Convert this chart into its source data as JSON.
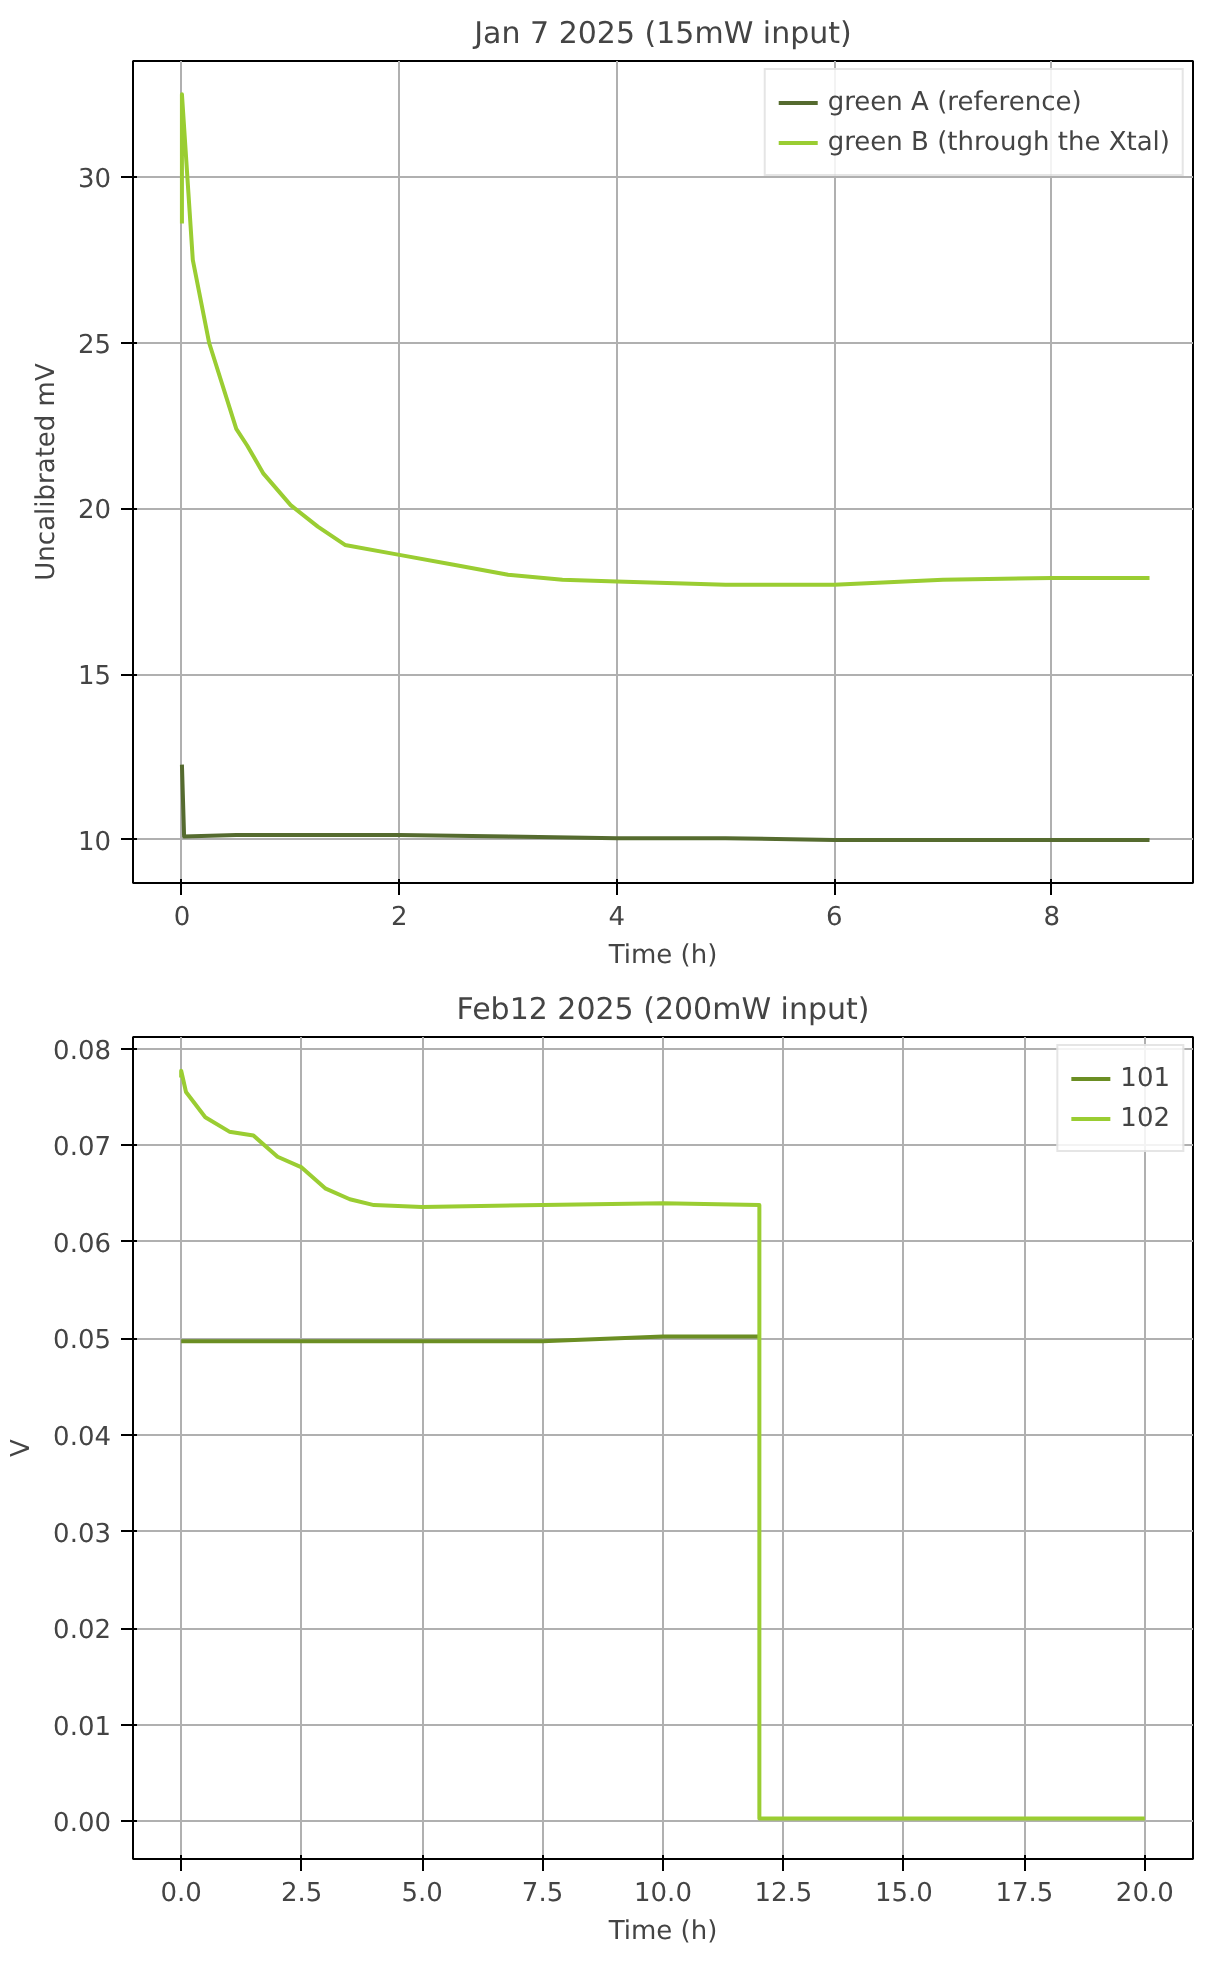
{
  "chart_data": [
    {
      "type": "line",
      "title": "Jan 7 2025 (15mW input)",
      "xlabel": "Time (h)",
      "ylabel": "Uncalibrated mV",
      "xlim": [
        -0.45,
        9.3
      ],
      "ylim": [
        8.7,
        33.5
      ],
      "xticks": [
        0,
        2,
        4,
        6,
        8
      ],
      "yticks": [
        10,
        15,
        20,
        25,
        30
      ],
      "grid": true,
      "legend": "top right",
      "series": [
        {
          "name": "green A (reference)",
          "color": "#556b2f",
          "x": [
            0,
            0.02,
            0.5,
            1,
            2,
            3,
            4,
            5,
            6,
            7,
            8,
            8.9
          ],
          "values": [
            12.27,
            10.1,
            10.15,
            10.15,
            10.15,
            10.1,
            10.05,
            10.05,
            10.0,
            10.0,
            10.0,
            10.0
          ]
        },
        {
          "name": "green B (through the Xtal)",
          "color": "#9acd32",
          "x": [
            0,
            0,
            0.1,
            0.25,
            0.5,
            0.6,
            0.75,
            1,
            1.25,
            1.5,
            2,
            2.5,
            3,
            3.5,
            4,
            5,
            6,
            7,
            8,
            8.9
          ],
          "values": [
            28.6,
            32.5,
            27.5,
            25.0,
            22.4,
            21.9,
            21.05,
            20.1,
            19.45,
            18.9,
            18.6,
            18.3,
            18.0,
            17.85,
            17.8,
            17.7,
            17.7,
            17.85,
            17.9,
            17.9
          ]
        }
      ]
    },
    {
      "type": "line",
      "title": "Feb12 2025 (200mW input)",
      "xlabel": "Time (h)",
      "ylabel": "V",
      "xlim": [
        -1.0,
        21.0
      ],
      "ylim": [
        -0.0039,
        0.0812
      ],
      "xticks": [
        {
          "value": 0,
          "label": "0.0"
        },
        {
          "value": 2.5,
          "label": "2.5"
        },
        {
          "value": 5,
          "label": "5.0"
        },
        {
          "value": 7.5,
          "label": "7.5"
        },
        {
          "value": 10,
          "label": "10.0"
        },
        {
          "value": 12.5,
          "label": "12.5"
        },
        {
          "value": 15,
          "label": "15.0"
        },
        {
          "value": 17.5,
          "label": "17.5"
        },
        {
          "value": 20,
          "label": "20.0"
        }
      ],
      "yticks": [
        {
          "value": 0,
          "label": "0.00"
        },
        {
          "value": 0.01,
          "label": "0.01"
        },
        {
          "value": 0.02,
          "label": "0.02"
        },
        {
          "value": 0.03,
          "label": "0.03"
        },
        {
          "value": 0.04,
          "label": "0.04"
        },
        {
          "value": 0.05,
          "label": "0.05"
        },
        {
          "value": 0.06,
          "label": "0.06"
        },
        {
          "value": 0.07,
          "label": "0.07"
        },
        {
          "value": 0.08,
          "label": "0.08"
        }
      ],
      "grid": true,
      "legend": "top right",
      "series": [
        {
          "name": "101",
          "color": "#6b8e23",
          "x": [
            0,
            2.5,
            5,
            7.5,
            10,
            12
          ],
          "values": [
            0.0497,
            0.0497,
            0.0497,
            0.0497,
            0.0502,
            0.0502
          ]
        },
        {
          "name": "102",
          "color": "#9acd32",
          "x": [
            0,
            0,
            0.1,
            0.5,
            1,
            1.5,
            2,
            2.5,
            3,
            3.5,
            4,
            5,
            7.5,
            10,
            12,
            12,
            20
          ],
          "values": [
            0.077,
            0.0777,
            0.0755,
            0.0729,
            0.0714,
            0.071,
            0.0688,
            0.0677,
            0.0655,
            0.0644,
            0.0638,
            0.0636,
            0.0638,
            0.064,
            0.0638,
            0.0003,
            0.0003
          ]
        }
      ]
    }
  ]
}
